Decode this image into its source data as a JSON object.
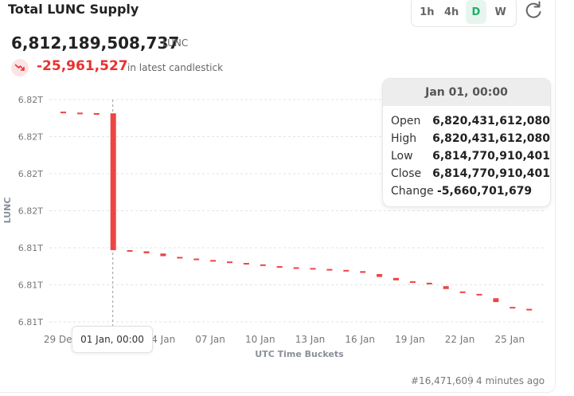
{
  "header": {
    "title": "Total LUNC Supply",
    "timeframes": [
      {
        "label": "1h",
        "active": false
      },
      {
        "label": "4h",
        "active": false
      },
      {
        "label": "D",
        "active": true
      },
      {
        "label": "W",
        "active": false
      }
    ]
  },
  "supply": {
    "value": "6,812,189,508,737",
    "unit": "LUNC",
    "change": "-25,961,527",
    "change_note": "in latest candlestick"
  },
  "tooltip": {
    "date": "Jan 01, 00:00",
    "rows": [
      {
        "label": "Open",
        "value": "6,820,431,612,080"
      },
      {
        "label": "High",
        "value": "6,820,431,612,080"
      },
      {
        "label": "Low",
        "value": "6,814,770,910,401"
      },
      {
        "label": "Close",
        "value": "6,814,770,910,401"
      },
      {
        "label": "Change",
        "value": "-5,660,701,679"
      }
    ]
  },
  "crosshair_label": "01 Jan, 00:00",
  "footer": {
    "block": "#16,471,609",
    "updated": "4 minutes ago"
  },
  "colors": {
    "down": "#ee4444",
    "accent": "#1fae67"
  },
  "chart_data": {
    "type": "candlestick",
    "xlabel": "UTC Time Buckets",
    "ylabel": "LUNC",
    "y_tick_labels": [
      "6.82T",
      "6.82T",
      "6.82T",
      "6.82T",
      "6.81T",
      "6.81T",
      "6.81T"
    ],
    "x_tick_labels": [
      "29 Dec",
      "01 Jan",
      "04 Jan",
      "07 Jan",
      "10 Jan",
      "13 Jan",
      "16 Jan",
      "19 Jan",
      "22 Jan",
      "25 Jan"
    ],
    "x_tick_days": [
      0,
      3,
      6,
      9,
      12,
      15,
      18,
      21,
      24,
      27
    ],
    "y_range_est": [
      6811800000000,
      6821000000000
    ],
    "candles": [
      {
        "day": 0,
        "open": 6820500000000,
        "close": 6820470000000
      },
      {
        "day": 1,
        "open": 6820460000000,
        "close": 6820440000000
      },
      {
        "day": 2,
        "open": 6820440000000,
        "close": 6820431612080
      },
      {
        "day": 3,
        "open": 6820431612080,
        "close": 6814770910401
      },
      {
        "day": 4,
        "open": 6814770000000,
        "close": 6814730000000
      },
      {
        "day": 5,
        "open": 6814720000000,
        "close": 6814640000000
      },
      {
        "day": 6,
        "open": 6814630000000,
        "close": 6814520000000
      },
      {
        "day": 7,
        "open": 6814490000000,
        "close": 6814460000000
      },
      {
        "day": 8,
        "open": 6814420000000,
        "close": 6814390000000
      },
      {
        "day": 9,
        "open": 6814360000000,
        "close": 6814330000000
      },
      {
        "day": 10,
        "open": 6814300000000,
        "close": 6814270000000
      },
      {
        "day": 11,
        "open": 6814240000000,
        "close": 6814210000000
      },
      {
        "day": 12,
        "open": 6814180000000,
        "close": 6814150000000
      },
      {
        "day": 13,
        "open": 6814110000000,
        "close": 6814080000000
      },
      {
        "day": 14,
        "open": 6814060000000,
        "close": 6814040000000
      },
      {
        "day": 15,
        "open": 6814030000000,
        "close": 6814000000000
      },
      {
        "day": 16,
        "open": 6813990000000,
        "close": 6813960000000
      },
      {
        "day": 17,
        "open": 6813950000000,
        "close": 6813920000000
      },
      {
        "day": 18,
        "open": 6813900000000,
        "close": 6813830000000
      },
      {
        "day": 19,
        "open": 6813780000000,
        "close": 6813660000000
      },
      {
        "day": 20,
        "open": 6813620000000,
        "close": 6813520000000
      },
      {
        "day": 21,
        "open": 6813480000000,
        "close": 6813450000000
      },
      {
        "day": 22,
        "open": 6813420000000,
        "close": 6813390000000
      },
      {
        "day": 23,
        "open": 6813280000000,
        "close": 6813160000000
      },
      {
        "day": 24,
        "open": 6813060000000,
        "close": 6813020000000
      },
      {
        "day": 25,
        "open": 6812960000000,
        "close": 6812900000000
      },
      {
        "day": 26,
        "open": 6812780000000,
        "close": 6812620000000
      },
      {
        "day": 27,
        "open": 6812420000000,
        "close": 6812390000000
      },
      {
        "day": 28,
        "open": 6812340000000,
        "close": 6812320000000
      }
    ]
  }
}
